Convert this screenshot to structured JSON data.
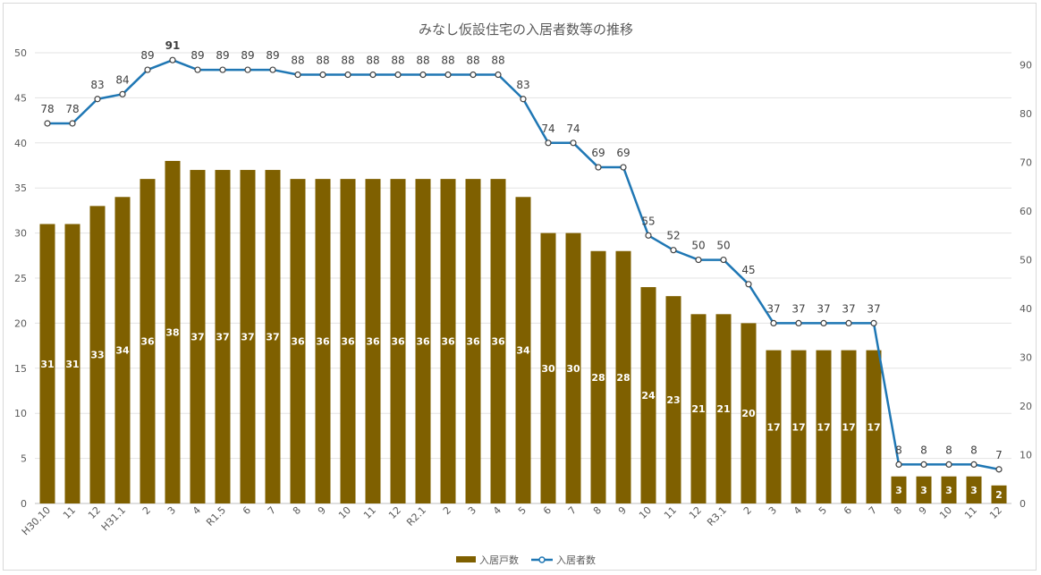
{
  "chart_data": {
    "type": "bar",
    "title": "みなし仮設住宅の入居者数等の推移",
    "categories": [
      "H30.10",
      "11",
      "12",
      "H31.1",
      "2",
      "3",
      "4",
      "R1.5",
      "6",
      "7",
      "8",
      "9",
      "10",
      "11",
      "12",
      "R2.1",
      "2",
      "3",
      "4",
      "5",
      "6",
      "7",
      "8",
      "9",
      "10",
      "11",
      "12",
      "R3.1",
      "2",
      "3",
      "4",
      "5",
      "6",
      "7",
      "8",
      "9",
      "10",
      "11",
      "12"
    ],
    "series": [
      {
        "name": "入居戸数",
        "type": "bar",
        "axis": "left",
        "color": "#7f6000",
        "values": [
          31,
          31,
          33,
          34,
          36,
          38,
          37,
          37,
          37,
          37,
          36,
          36,
          36,
          36,
          36,
          36,
          36,
          36,
          36,
          34,
          30,
          30,
          28,
          28,
          24,
          23,
          21,
          21,
          20,
          17,
          17,
          17,
          17,
          17,
          3,
          3,
          3,
          3,
          2
        ],
        "highlight_index": 5,
        "highlight_color": "#ffff00"
      },
      {
        "name": "入居者数",
        "type": "line",
        "axis": "right",
        "color": "#1f77b4",
        "values": [
          78,
          78,
          83,
          84,
          89,
          91,
          89,
          89,
          89,
          89,
          88,
          88,
          88,
          88,
          88,
          88,
          88,
          88,
          88,
          83,
          74,
          74,
          69,
          69,
          55,
          52,
          50,
          50,
          45,
          37,
          37,
          37,
          37,
          37,
          8,
          8,
          8,
          8,
          7
        ],
        "highlight_index": 5,
        "highlight_color": "#e00000"
      }
    ],
    "y_left": {
      "min": 0,
      "max": 50,
      "step": 5,
      "ticks": [
        "0",
        "5",
        "10",
        "15",
        "20",
        "25",
        "30",
        "35",
        "40",
        "45",
        "50"
      ]
    },
    "y_right": {
      "min": 0,
      "max": 92.5,
      "ticks": [
        "0",
        "10",
        "20",
        "30",
        "40",
        "50",
        "60",
        "70",
        "80",
        "90"
      ]
    },
    "grid": true,
    "legend_position": "bottom",
    "legend": [
      "入居戸数",
      "入居者数"
    ]
  }
}
